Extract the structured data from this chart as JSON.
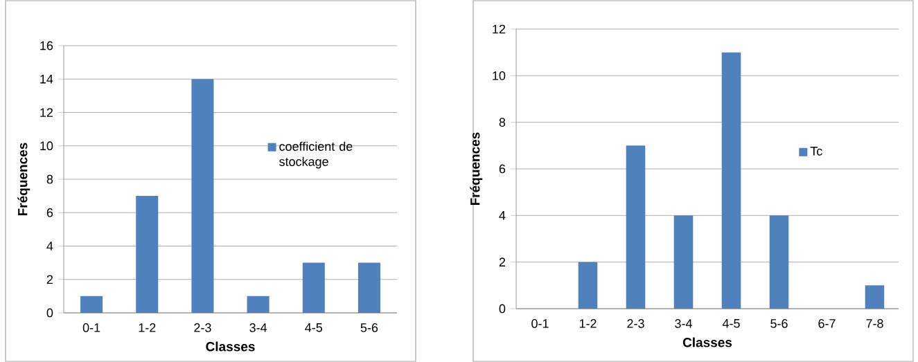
{
  "chart_data": [
    {
      "type": "bar",
      "xlabel": "Classes",
      "ylabel": "Fréquences",
      "categories": [
        "0-1",
        "1-2",
        "2-3",
        "3-4",
        "4-5",
        "5-6"
      ],
      "series": [
        {
          "name": "coefficient de stockage",
          "color": "#4f81bd",
          "values": [
            1,
            7,
            14,
            1,
            3,
            3
          ]
        }
      ],
      "ylim": [
        0,
        16
      ],
      "yticks": [
        0,
        2,
        4,
        6,
        8,
        10,
        12,
        14,
        16
      ],
      "grid": "y",
      "legend": "right"
    },
    {
      "type": "bar",
      "xlabel": "Classes",
      "ylabel": "Fréquences",
      "categories": [
        "0-1",
        "1-2",
        "2-3",
        "3-4",
        "4-5",
        "5-6",
        "6-7",
        "7-8"
      ],
      "series": [
        {
          "name": "Tc",
          "color": "#4f81bd",
          "values": [
            0,
            2,
            7,
            4,
            11,
            4,
            0,
            1
          ]
        }
      ],
      "ylim": [
        0,
        12
      ],
      "yticks": [
        0,
        2,
        4,
        6,
        8,
        10,
        12
      ],
      "grid": "y",
      "legend": "right"
    }
  ]
}
